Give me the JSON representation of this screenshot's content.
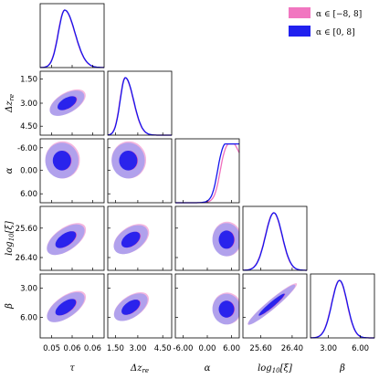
{
  "chart_data": {
    "type": "corner",
    "parameters": [
      {
        "key": "tau",
        "label": "τ",
        "ticks": [
          "0.05",
          "0.06",
          "0.06"
        ]
      },
      {
        "key": "dz",
        "label": "Δz",
        "label_sub": "re",
        "ticks": [
          "1.50",
          "3.00",
          "4.50"
        ]
      },
      {
        "key": "alpha",
        "label": "α",
        "ticks": [
          "-6.00",
          "0.00",
          "6.00"
        ]
      },
      {
        "key": "logxi",
        "label": "log",
        "label_sub": "10",
        "label_suffix": "[ξ]",
        "ticks": [
          "25.60",
          "26.40"
        ]
      },
      {
        "key": "beta",
        "label": "β",
        "ticks": [
          "3.00",
          "6.00"
        ]
      }
    ],
    "series": [
      {
        "name": "α ∈ [−8, 8]",
        "color": "#f06fbd",
        "fill_inner": "#ea5fb3",
        "fill_outer": "#f3a9d8"
      },
      {
        "name": "α ∈ [0, 8]",
        "color": "#1515ee",
        "fill_inner": "#2020ee",
        "fill_outer": "#9a9af0"
      }
    ],
    "contour_levels": [
      "68%",
      "95%"
    ],
    "legend_position": "top-right",
    "grid": false
  }
}
